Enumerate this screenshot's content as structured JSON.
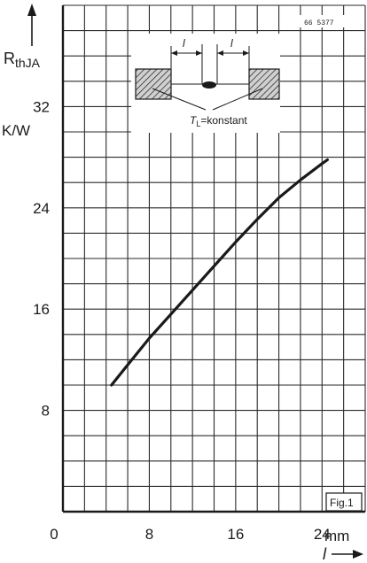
{
  "chart_data": {
    "type": "line",
    "title": "",
    "xlabel": "l",
    "ylabel": "R_thJA",
    "x_unit": "mm",
    "y_unit": "K/W",
    "xlim": [
      0,
      28
    ],
    "ylim": [
      0,
      40
    ],
    "x_ticks": [
      0,
      8,
      16,
      24
    ],
    "y_ticks": [
      8,
      16,
      24,
      32
    ],
    "x_tick_labels": [
      "0",
      "8",
      "16",
      "24"
    ],
    "y_tick_labels": [
      "8",
      "16",
      "24",
      "32"
    ],
    "grid": true,
    "series": [
      {
        "x": [
          4.5,
          6,
          8,
          10,
          12,
          14,
          16,
          18,
          20,
          22,
          24,
          24.5
        ],
        "y": [
          10.0,
          11.6,
          13.7,
          15.6,
          17.5,
          19.4,
          21.3,
          23.1,
          24.8,
          26.2,
          27.5,
          27.8
        ]
      }
    ],
    "ylabel_main": "R",
    "ylabel_sub": "thJA",
    "doc_code": "66 5377",
    "figure_label": "Fig.1",
    "inset_label_l1": "l",
    "inset_label_l2": "l",
    "inset_formula_main": "T",
    "inset_formula_sub": "L",
    "inset_formula_rest": "=konstant",
    "colors": {
      "ink": "#1a1a1a",
      "grid": "#2a2a2a",
      "paper": "#ffffff",
      "hatch_fill": "#bdbdbd"
    }
  }
}
